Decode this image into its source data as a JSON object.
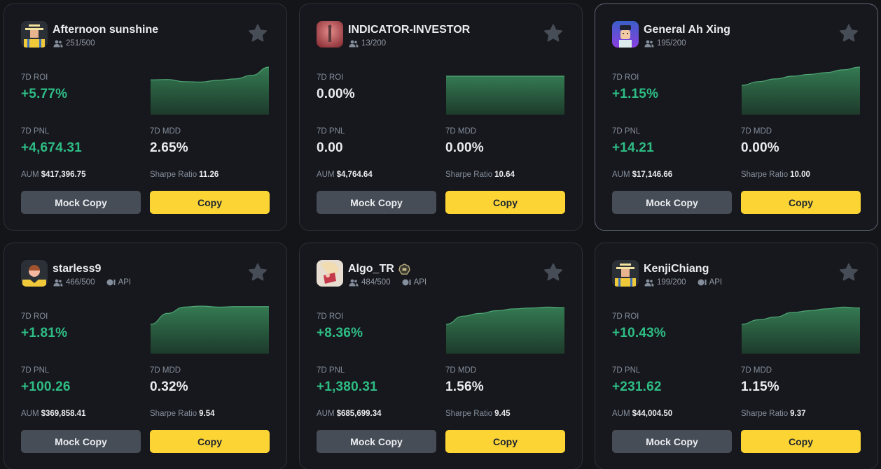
{
  "labels": {
    "roi": "7D ROI",
    "pnl": "7D PNL",
    "mdd": "7D MDD",
    "aum": "AUM",
    "sharpe": "Sharpe Ratio",
    "api": "API",
    "mock_copy": "Mock Copy",
    "copy": "Copy"
  },
  "colors": {
    "background": "#141519",
    "card": "#17181d",
    "positive": "#2ebd85",
    "copy_button": "#fcd535",
    "mock_button": "#474d57",
    "chart_fill": "#2f6b4a"
  },
  "cards": [
    {
      "name": "Afternoon sunshine",
      "followers": "251/500",
      "api": false,
      "roi": "+5.77%",
      "pnl": "+4,674.31",
      "mdd": "2.65%",
      "aum": "$417,396.75",
      "sharpe": "11.26",
      "avatar": "farmer-yellow",
      "selected": false
    },
    {
      "name": "INDICATOR-INVESTOR",
      "followers": "13/200",
      "api": false,
      "roi": "0.00%",
      "pnl": "0.00",
      "mdd": "0.00%",
      "aum": "$4,764.64",
      "sharpe": "10.64",
      "avatar": "red-photo",
      "selected": false
    },
    {
      "name": "General Ah Xing",
      "followers": "195/200",
      "api": false,
      "roi": "+1.15%",
      "pnl": "+14.21",
      "mdd": "0.00%",
      "aum": "$17,146.66",
      "sharpe": "10.00",
      "avatar": "cartoon-officer",
      "selected": true
    },
    {
      "name": "starless9",
      "followers": "466/500",
      "api": true,
      "roi": "+1.81%",
      "pnl": "+100.26",
      "mdd": "0.32%",
      "aum": "$369,858.41",
      "sharpe": "9.54",
      "avatar": "default-brown-hair",
      "selected": false
    },
    {
      "name": "Algo_TR",
      "followers": "484/500",
      "api": true,
      "badge": "rank-badge",
      "roi": "+8.36%",
      "pnl": "+1,380.31",
      "mdd": "1.56%",
      "aum": "$685,699.34",
      "sharpe": "9.45",
      "avatar": "anime-girl",
      "selected": false
    },
    {
      "name": "KenjiChiang",
      "followers": "199/200",
      "api": true,
      "roi": "+10.43%",
      "pnl": "+231.62",
      "mdd": "1.15%",
      "aum": "$44,004.50",
      "sharpe": "9.37",
      "avatar": "farmer-yellow",
      "selected": false
    }
  ],
  "chart_data": [
    {
      "type": "area",
      "title": "Afternoon sunshine 7D ROI",
      "values": [
        0.3,
        0.32,
        0.2,
        0.18,
        0.28,
        0.35,
        0.55,
        1.0
      ]
    },
    {
      "type": "area",
      "title": "INDICATOR-INVESTOR 7D ROI",
      "values": [
        0.5,
        0.5,
        0.5,
        0.5,
        0.5,
        0.5,
        0.5,
        0.5
      ]
    },
    {
      "type": "area",
      "title": "General Ah Xing 7D ROI",
      "values": [
        0.0,
        0.2,
        0.35,
        0.5,
        0.6,
        0.7,
        0.85,
        1.0
      ]
    },
    {
      "type": "area",
      "title": "starless9 7D ROI",
      "values": [
        0.0,
        0.6,
        0.95,
        1.0,
        0.95,
        0.97,
        0.97,
        0.97
      ]
    },
    {
      "type": "area",
      "title": "Algo_TR 7D ROI",
      "values": [
        0.0,
        0.45,
        0.6,
        0.75,
        0.85,
        0.9,
        0.95,
        0.92
      ]
    },
    {
      "type": "area",
      "title": "KenjiChiang 7D ROI",
      "values": [
        0.0,
        0.25,
        0.4,
        0.65,
        0.75,
        0.85,
        0.95,
        0.9
      ]
    }
  ]
}
